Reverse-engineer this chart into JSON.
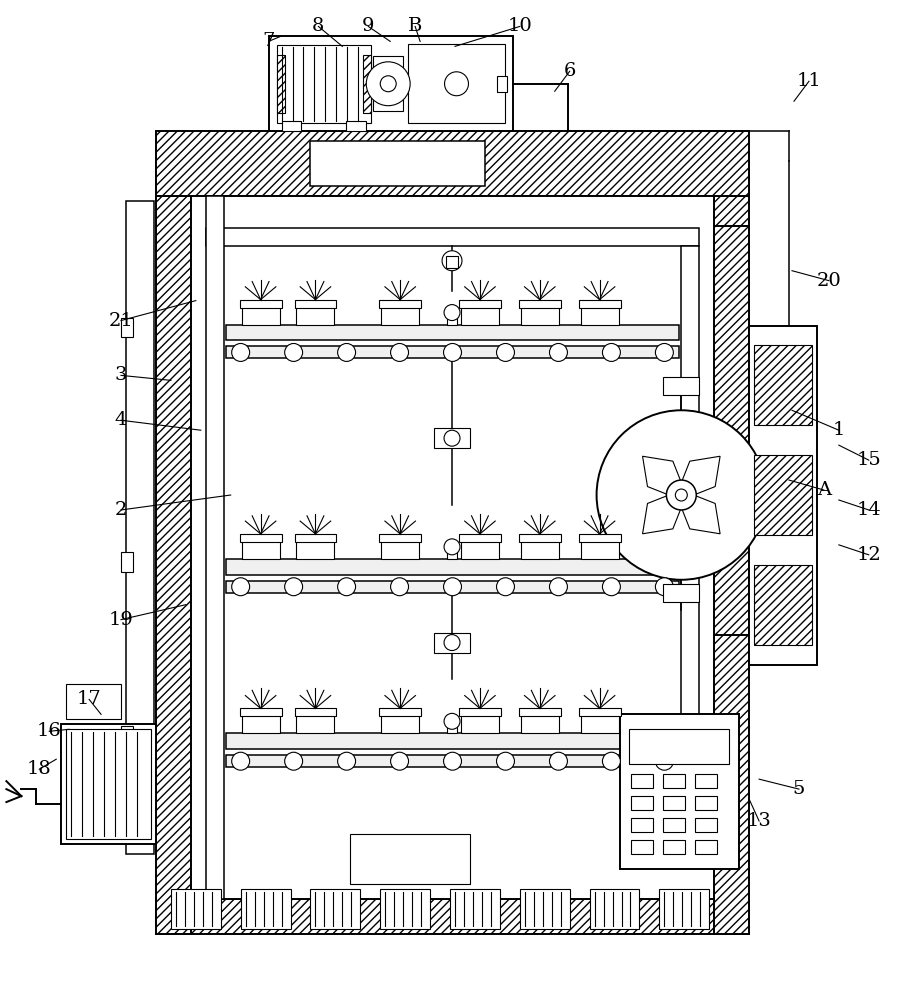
{
  "bg_color": "#ffffff",
  "line_color": "#000000",
  "fig_width": 9.2,
  "fig_height": 10.0,
  "label_fontsize": 14,
  "lw_main": 1.4,
  "lw_thin": 0.8,
  "lw_med": 1.1
}
